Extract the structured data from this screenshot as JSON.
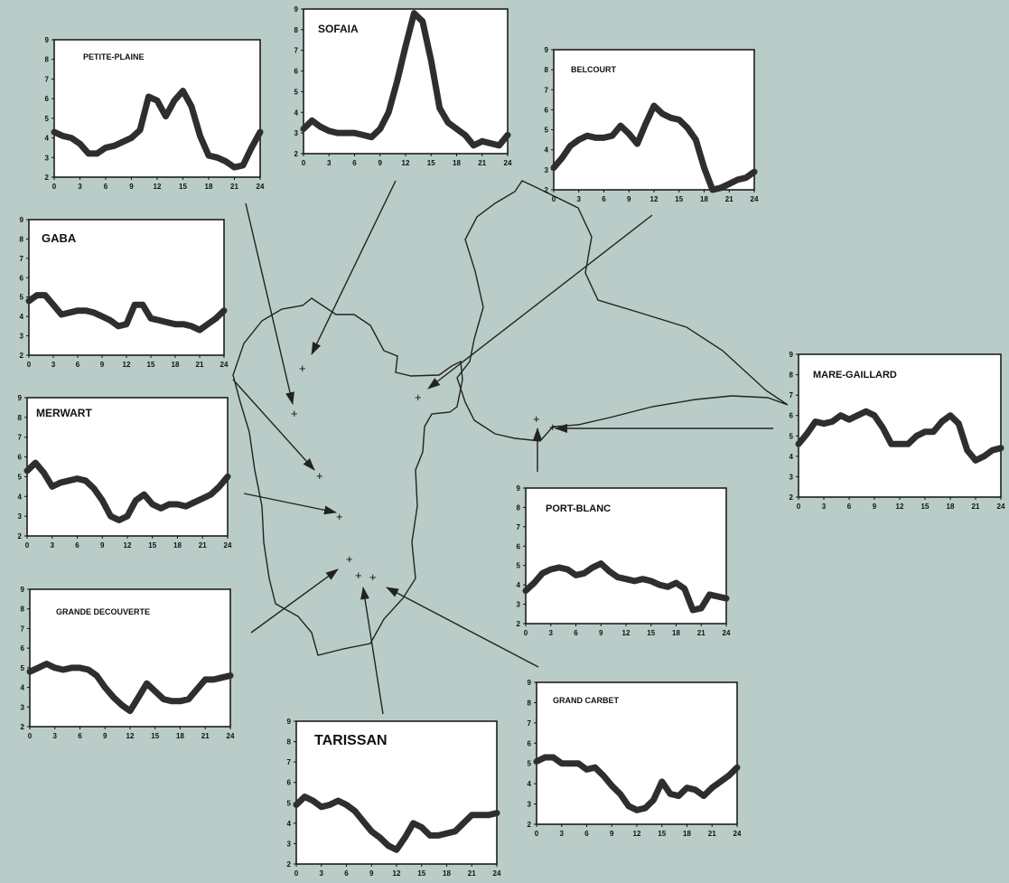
{
  "chart_data": [
    {
      "type": "line",
      "title": "PETITE-PLAINE",
      "x": [
        0,
        1,
        2,
        3,
        4,
        5,
        6,
        7,
        8,
        9,
        10,
        11,
        12,
        13,
        14,
        15,
        16,
        17,
        18,
        19,
        20,
        21,
        22,
        23,
        24
      ],
      "values": [
        4.3,
        4.1,
        4.0,
        3.7,
        3.2,
        3.2,
        3.5,
        3.6,
        3.8,
        4.0,
        4.4,
        6.1,
        5.9,
        5.1,
        5.9,
        6.4,
        5.6,
        4.1,
        3.1,
        3.0,
        2.8,
        2.5,
        2.6,
        3.5,
        4.3
      ],
      "xticks": [
        "0",
        "3",
        "6",
        "9",
        "12",
        "15",
        "18",
        "21",
        "24"
      ],
      "yticks": [
        "2",
        "3",
        "4",
        "5",
        "6",
        "7",
        "8",
        "9"
      ],
      "xlim": [
        0,
        24
      ],
      "ylim": [
        2,
        9
      ]
    },
    {
      "type": "line",
      "title": "SOFAIA",
      "x": [
        0,
        1,
        2,
        3,
        4,
        5,
        6,
        7,
        8,
        9,
        10,
        11,
        12,
        13,
        14,
        15,
        16,
        17,
        18,
        19,
        20,
        21,
        22,
        23,
        24
      ],
      "values": [
        3.2,
        3.6,
        3.3,
        3.1,
        3.0,
        3.0,
        3.0,
        2.9,
        2.8,
        3.2,
        4.0,
        5.5,
        7.2,
        8.8,
        8.4,
        6.5,
        4.2,
        3.5,
        3.2,
        2.9,
        2.4,
        2.6,
        2.5,
        2.4,
        2.9
      ],
      "xticks": [
        "0",
        "3",
        "6",
        "9",
        "12",
        "15",
        "18",
        "21",
        "24"
      ],
      "yticks": [
        "2",
        "3",
        "4",
        "5",
        "6",
        "7",
        "8",
        "9"
      ],
      "xlim": [
        0,
        24
      ],
      "ylim": [
        2,
        9
      ]
    },
    {
      "type": "line",
      "title": "BELCOURT",
      "x": [
        0,
        1,
        2,
        3,
        4,
        5,
        6,
        7,
        8,
        9,
        10,
        11,
        12,
        13,
        14,
        15,
        16,
        17,
        18,
        19,
        20,
        21,
        22,
        23,
        24
      ],
      "values": [
        3.1,
        3.6,
        4.2,
        4.5,
        4.7,
        4.6,
        4.6,
        4.7,
        5.2,
        4.8,
        4.3,
        5.3,
        6.2,
        5.8,
        5.6,
        5.5,
        5.1,
        4.5,
        3.1,
        2.0,
        2.1,
        2.3,
        2.5,
        2.6,
        2.9
      ],
      "xticks": [
        "0",
        "3",
        "6",
        "9",
        "12",
        "15",
        "18",
        "21",
        "24"
      ],
      "yticks": [
        "2",
        "3",
        "4",
        "5",
        "6",
        "7",
        "8",
        "9"
      ],
      "xlim": [
        0,
        24
      ],
      "ylim": [
        2,
        9
      ]
    },
    {
      "type": "line",
      "title": "GABA",
      "x": [
        0,
        1,
        2,
        3,
        4,
        5,
        6,
        7,
        8,
        9,
        10,
        11,
        12,
        13,
        14,
        15,
        16,
        17,
        18,
        19,
        20,
        21,
        22,
        23,
        24
      ],
      "values": [
        4.8,
        5.1,
        5.1,
        4.6,
        4.1,
        4.2,
        4.3,
        4.3,
        4.2,
        4.0,
        3.8,
        3.5,
        3.6,
        4.6,
        4.6,
        3.9,
        3.8,
        3.7,
        3.6,
        3.6,
        3.5,
        3.3,
        3.6,
        3.9,
        4.3
      ],
      "xticks": [
        "0",
        "3",
        "6",
        "9",
        "12",
        "15",
        "18",
        "21",
        "24"
      ],
      "yticks": [
        "2",
        "3",
        "4",
        "5",
        "6",
        "7",
        "8",
        "9"
      ],
      "xlim": [
        0,
        24
      ],
      "ylim": [
        2,
        9
      ]
    },
    {
      "type": "line",
      "title": "MERWART",
      "x": [
        0,
        1,
        2,
        3,
        4,
        5,
        6,
        7,
        8,
        9,
        10,
        11,
        12,
        13,
        14,
        15,
        16,
        17,
        18,
        19,
        20,
        21,
        22,
        23,
        24
      ],
      "values": [
        5.3,
        5.7,
        5.2,
        4.5,
        4.7,
        4.8,
        4.9,
        4.8,
        4.4,
        3.8,
        3.0,
        2.8,
        3.0,
        3.8,
        4.1,
        3.6,
        3.4,
        3.6,
        3.6,
        3.5,
        3.7,
        3.9,
        4.1,
        4.5,
        5.0
      ],
      "xticks": [
        "0",
        "3",
        "6",
        "9",
        "12",
        "15",
        "18",
        "21",
        "24"
      ],
      "yticks": [
        "2",
        "3",
        "4",
        "5",
        "6",
        "7",
        "8",
        "9"
      ],
      "xlim": [
        0,
        24
      ],
      "ylim": [
        2,
        9
      ]
    },
    {
      "type": "line",
      "title": "GRANDE DECOUVERTE",
      "x": [
        0,
        1,
        2,
        3,
        4,
        5,
        6,
        7,
        8,
        9,
        10,
        11,
        12,
        13,
        14,
        15,
        16,
        17,
        18,
        19,
        20,
        21,
        22,
        23,
        24
      ],
      "values": [
        4.8,
        5.0,
        5.2,
        5.0,
        4.9,
        5.0,
        5.0,
        4.9,
        4.6,
        4.0,
        3.5,
        3.1,
        2.8,
        3.5,
        4.2,
        3.8,
        3.4,
        3.3,
        3.3,
        3.4,
        3.9,
        4.4,
        4.4,
        4.5,
        4.6
      ],
      "xticks": [
        "0",
        "3",
        "6",
        "9",
        "12",
        "15",
        "18",
        "21",
        "24"
      ],
      "yticks": [
        "2",
        "3",
        "4",
        "5",
        "6",
        "7",
        "8",
        "9"
      ],
      "xlim": [
        0,
        24
      ],
      "ylim": [
        2,
        9
      ]
    },
    {
      "type": "line",
      "title": "TARISSAN",
      "x": [
        0,
        1,
        2,
        3,
        4,
        5,
        6,
        7,
        8,
        9,
        10,
        11,
        12,
        13,
        14,
        15,
        16,
        17,
        18,
        19,
        20,
        21,
        22,
        23,
        24
      ],
      "values": [
        4.9,
        5.3,
        5.1,
        4.8,
        4.9,
        5.1,
        4.9,
        4.6,
        4.1,
        3.6,
        3.3,
        2.9,
        2.7,
        3.3,
        4.0,
        3.8,
        3.4,
        3.4,
        3.5,
        3.6,
        4.0,
        4.4,
        4.4,
        4.4,
        4.5
      ],
      "xticks": [
        "0",
        "3",
        "6",
        "9",
        "12",
        "15",
        "18",
        "21",
        "24"
      ],
      "yticks": [
        "2",
        "3",
        "4",
        "5",
        "6",
        "7",
        "8",
        "9"
      ],
      "xlim": [
        0,
        24
      ],
      "ylim": [
        2,
        9
      ]
    },
    {
      "type": "line",
      "title": "GRAND CARBET",
      "x": [
        0,
        1,
        2,
        3,
        4,
        5,
        6,
        7,
        8,
        9,
        10,
        11,
        12,
        13,
        14,
        15,
        16,
        17,
        18,
        19,
        20,
        21,
        22,
        23,
        24
      ],
      "values": [
        5.1,
        5.3,
        5.3,
        5.0,
        5.0,
        5.0,
        4.7,
        4.8,
        4.4,
        3.9,
        3.5,
        2.9,
        2.7,
        2.8,
        3.2,
        4.1,
        3.5,
        3.4,
        3.8,
        3.7,
        3.4,
        3.8,
        4.1,
        4.4,
        4.8
      ],
      "xticks": [
        "0",
        "3",
        "6",
        "9",
        "12",
        "15",
        "18",
        "21",
        "24"
      ],
      "yticks": [
        "2",
        "3",
        "4",
        "5",
        "6",
        "7",
        "8",
        "9"
      ],
      "xlim": [
        0,
        24
      ],
      "ylim": [
        2,
        9
      ]
    },
    {
      "type": "line",
      "title": "PORT-BLANC",
      "x": [
        0,
        1,
        2,
        3,
        4,
        5,
        6,
        7,
        8,
        9,
        10,
        11,
        12,
        13,
        14,
        15,
        16,
        17,
        18,
        19,
        20,
        21,
        22,
        23,
        24
      ],
      "values": [
        3.7,
        4.1,
        4.6,
        4.8,
        4.9,
        4.8,
        4.5,
        4.6,
        4.9,
        5.1,
        4.7,
        4.4,
        4.3,
        4.2,
        4.3,
        4.2,
        4.0,
        3.9,
        4.1,
        3.8,
        2.7,
        2.8,
        3.5,
        3.4,
        3.3
      ],
      "xticks": [
        "0",
        "3",
        "6",
        "9",
        "12",
        "15",
        "18",
        "21",
        "24"
      ],
      "yticks": [
        "2",
        "3",
        "4",
        "5",
        "6",
        "7",
        "8",
        "9"
      ],
      "xlim": [
        0,
        24
      ],
      "ylim": [
        2,
        9
      ]
    },
    {
      "type": "line",
      "title": "MARE-GAILLARD",
      "x": [
        0,
        1,
        2,
        3,
        4,
        5,
        6,
        7,
        8,
        9,
        10,
        11,
        12,
        13,
        14,
        15,
        16,
        17,
        18,
        19,
        20,
        21,
        22,
        23,
        24
      ],
      "values": [
        4.6,
        5.1,
        5.7,
        5.6,
        5.7,
        6.0,
        5.8,
        6.0,
        6.2,
        6.0,
        5.4,
        4.6,
        4.6,
        4.6,
        5.0,
        5.2,
        5.2,
        5.7,
        6.0,
        5.6,
        4.3,
        3.8,
        4.0,
        4.3,
        4.4
      ],
      "xticks": [
        "0",
        "3",
        "6",
        "9",
        "12",
        "15",
        "18",
        "21",
        "24"
      ],
      "yticks": [
        "2",
        "3",
        "4",
        "5",
        "6",
        "7",
        "8",
        "9"
      ],
      "xlim": [
        0,
        24
      ],
      "ylim": [
        2,
        9
      ]
    }
  ]
}
